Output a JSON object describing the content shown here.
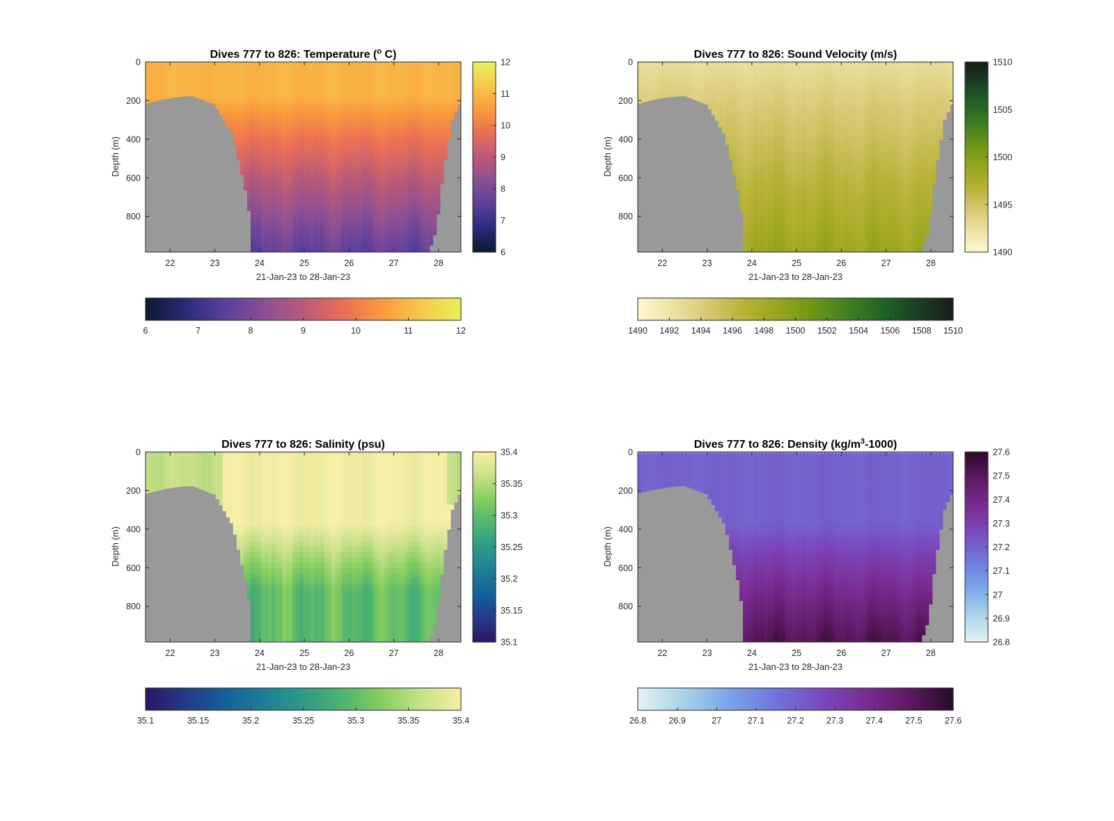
{
  "figure": {
    "background": "#ffffff",
    "land_color": "#999999",
    "panels": [
      {
        "id": "temperature",
        "title": "Dives 777 to 826: Temperature (",
        "title_unit_sup": "o",
        "title_suffix": " C)",
        "ylabel": "Depth (m)",
        "xlabel": "21-Jan-23 to 28-Jan-23",
        "ylim": [
          0,
          985
        ],
        "yticks": [
          0,
          200,
          400,
          600,
          800
        ],
        "xlim": [
          21.45,
          28.5
        ],
        "xticks": [
          22,
          23,
          24,
          25,
          26,
          27,
          28
        ],
        "cmap": [
          "#0d1a2c",
          "#2a2a7a",
          "#5b3f9c",
          "#8a4f94",
          "#bb5a78",
          "#e86e57",
          "#fb9a3c",
          "#f6c84a",
          "#e8f05c"
        ],
        "clim": [
          6,
          12
        ],
        "cticks_v": [
          "12",
          "11",
          "10",
          "9",
          "8",
          "7",
          "6"
        ],
        "cticks_h": [
          "6",
          "7",
          "8",
          "9",
          "10",
          "11",
          "12"
        ],
        "surface_value": 10.9,
        "deep_value": 7.6,
        "gradient_start": 180,
        "gradient_end": 985,
        "stripe_amp": 0.35,
        "coastal_patch": false
      },
      {
        "id": "sound_velocity",
        "title": "Dives 777 to 826: Sound Velocity (m/s)",
        "ylabel": "Depth (m)",
        "xlabel": "21-Jan-23 to 28-Jan-23",
        "ylim": [
          0,
          985
        ],
        "yticks": [
          0,
          200,
          400,
          600,
          800
        ],
        "xlim": [
          21.45,
          28.5
        ],
        "xticks": [
          22,
          23,
          24,
          25,
          26,
          27,
          28
        ],
        "cmap": [
          "#fdf8d2",
          "#ece3a2",
          "#d6c872",
          "#b8b237",
          "#96a61c",
          "#6e9616",
          "#3f8020",
          "#1f6426",
          "#1a3f22",
          "#181c18"
        ],
        "clim": [
          1490,
          1510
        ],
        "cticks_v": [
          "1510",
          "1505",
          "1500",
          "1495",
          "1490"
        ],
        "cticks_h": [
          "1490",
          "1492",
          "1494",
          "1496",
          "1498",
          "1500",
          "1502",
          "1504",
          "1506",
          "1508",
          "1510"
        ],
        "surface_value": 1492.6,
        "deep_value": 1498.6,
        "gradient_start": 0,
        "gradient_end": 985,
        "stripe_amp": 0.9,
        "coastal_patch": false
      },
      {
        "id": "salinity",
        "title": "Dives 777 to 826: Salinity (psu)",
        "ylabel": "Depth (m)",
        "xlabel": "21-Jan-23 to 28-Jan-23",
        "ylim": [
          0,
          985
        ],
        "yticks": [
          0,
          200,
          400,
          600,
          800
        ],
        "xlim": [
          21.45,
          28.5
        ],
        "xticks": [
          22,
          23,
          24,
          25,
          26,
          27,
          28
        ],
        "cmap": [
          "#2b1664",
          "#233b88",
          "#14609a",
          "#1e7f96",
          "#2e9a88",
          "#4eb46f",
          "#86ce5f",
          "#c8e08a",
          "#f6efa5"
        ],
        "clim": [
          35.1,
          35.4
        ],
        "cticks_v": [
          "35.4",
          "35.35",
          "35.3",
          "35.25",
          "35.2",
          "35.15",
          "35.1"
        ],
        "cticks_h": [
          "35.1",
          "35.15",
          "35.2",
          "35.25",
          "35.3",
          "35.35",
          "35.4"
        ],
        "surface_value": 35.395,
        "deep_value": 35.3,
        "gradient_start": 380,
        "gradient_end": 720,
        "stripe_amp": 0.03,
        "coastal_patch": true,
        "coastal_value": 35.36
      },
      {
        "id": "density",
        "title": "Dives 777 to 826: Density (kg/m",
        "title_unit_sup": "3",
        "title_suffix": "-1000)",
        "ylabel": "Depth (m)",
        "xlabel": "21-Jan-23 to 28-Jan-23",
        "ylim": [
          0,
          985
        ],
        "yticks": [
          0,
          200,
          400,
          600,
          800
        ],
        "xlim": [
          21.45,
          28.5
        ],
        "xticks": [
          22,
          23,
          24,
          25,
          26,
          27,
          28
        ],
        "cmap": [
          "#e4f2f1",
          "#a9d3e8",
          "#7aa6ea",
          "#6f78dd",
          "#7a4cc0",
          "#7a2e95",
          "#5e1a64",
          "#2a0a27"
        ],
        "clim": [
          26.8,
          27.6
        ],
        "cticks_v": [
          "27.6",
          "27.5",
          "27.4",
          "27.3",
          "27.2",
          "27.1",
          "27",
          "26.9",
          "26.8"
        ],
        "cticks_h": [
          "26.8",
          "26.9",
          "27",
          "27.1",
          "27.2",
          "27.3",
          "27.4",
          "27.5",
          "27.6"
        ],
        "surface_value": 27.2,
        "deep_value": 27.52,
        "gradient_start": 380,
        "gradient_end": 985,
        "stripe_amp": 0.05,
        "coastal_patch": false
      }
    ]
  }
}
